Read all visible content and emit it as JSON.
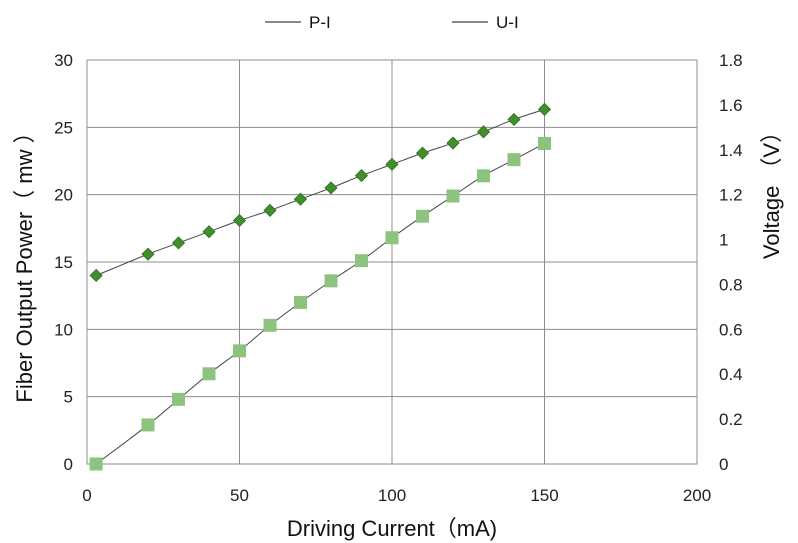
{
  "chart_data": {
    "type": "scatter",
    "xlabel": "Driving Current（mA)",
    "ylabel": "Fiber Output Power（ mw ）",
    "y2label": "Voltage （V）",
    "xlim": [
      0,
      200
    ],
    "ylim": [
      0,
      30
    ],
    "y2lim": [
      0,
      1.8
    ],
    "xticks": [
      "0",
      "50",
      "100",
      "150",
      "200"
    ],
    "yticks": [
      "0",
      "5",
      "10",
      "15",
      "20",
      "25",
      "30"
    ],
    "y2ticks": [
      "0",
      "0.2",
      "0.4",
      "0.6",
      "0.8",
      "1",
      "1.2",
      "1.4",
      "1.6",
      "1.8"
    ],
    "grid": true,
    "legend_position": "top",
    "series": [
      {
        "name": "P-I",
        "axis": "left",
        "marker": "square",
        "color": "#8dc37f",
        "points": [
          [
            3,
            0.0
          ],
          [
            20,
            2.9
          ],
          [
            30,
            4.8
          ],
          [
            40,
            6.7
          ],
          [
            50,
            8.4
          ],
          [
            60,
            10.3
          ],
          [
            70,
            12.0
          ],
          [
            80,
            13.6
          ],
          [
            90,
            15.1
          ],
          [
            100,
            16.8
          ],
          [
            110,
            18.4
          ],
          [
            120,
            19.9
          ],
          [
            130,
            21.4
          ],
          [
            140,
            22.6
          ],
          [
            150,
            23.8
          ]
        ]
      },
      {
        "name": "U-I",
        "axis": "right",
        "marker": "diamond",
        "color": "#3f8f2a",
        "points": [
          [
            3,
            0.84
          ],
          [
            20,
            0.935
          ],
          [
            30,
            0.985
          ],
          [
            40,
            1.035
          ],
          [
            50,
            1.085
          ],
          [
            60,
            1.13
          ],
          [
            70,
            1.18
          ],
          [
            80,
            1.23
          ],
          [
            90,
            1.285
          ],
          [
            100,
            1.335
          ],
          [
            110,
            1.385
          ],
          [
            120,
            1.43
          ],
          [
            130,
            1.48
          ],
          [
            140,
            1.535
          ],
          [
            150,
            1.58
          ]
        ]
      }
    ]
  }
}
